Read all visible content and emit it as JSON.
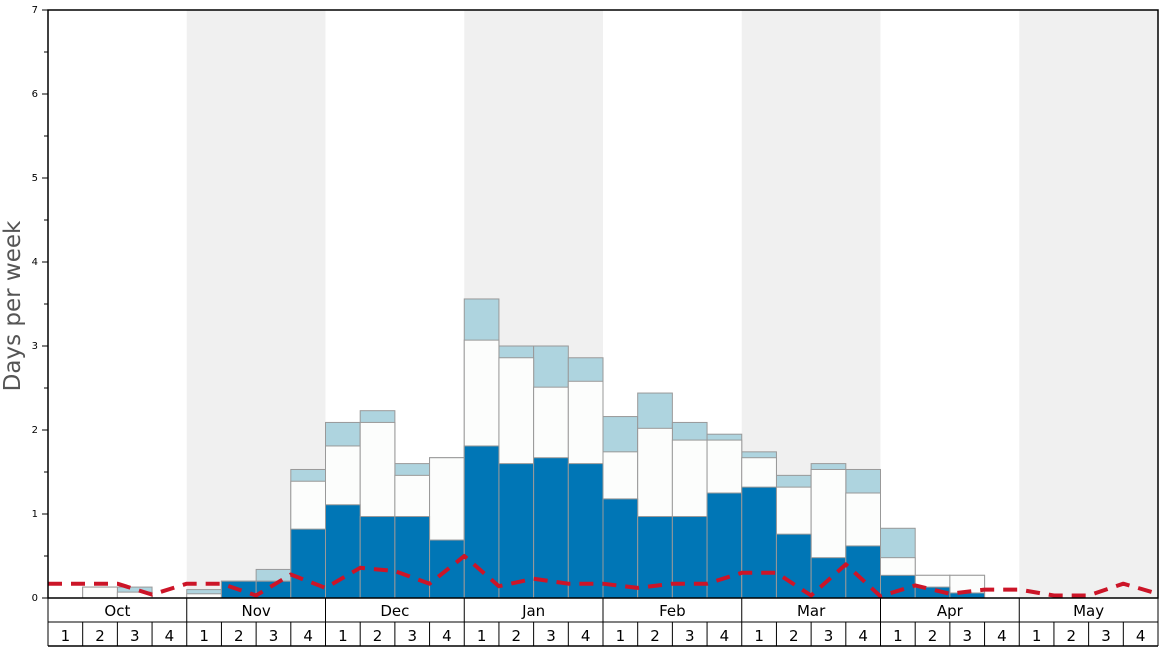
{
  "chart_data": {
    "type": "bar",
    "ylabel": "Days per week",
    "ylim": [
      0,
      7
    ],
    "yticks": [
      "0",
      "1",
      "2",
      "3",
      "4",
      "5",
      "6",
      "7"
    ],
    "months": [
      "Oct",
      "Nov",
      "Dec",
      "Jan",
      "Feb",
      "Mar",
      "Apr",
      "May"
    ],
    "weeks": [
      "1",
      "2",
      "3",
      "4"
    ],
    "shaded_months": [
      "Nov",
      "Jan",
      "Mar",
      "May"
    ],
    "colors": {
      "dark": "#0076b6",
      "middle": "#fcfdfc",
      "light": "#aed4df",
      "dashed_line": "#cc1528",
      "shade": "#f0f0f0",
      "bar_stroke": "#999999"
    },
    "series": [
      {
        "values": [
          0,
          0,
          0,
          0,
          0,
          0.2,
          0.2,
          0.82,
          1.11,
          0.97,
          0.97,
          0.69,
          1.81,
          1.6,
          1.67,
          1.6,
          1.18,
          0.97,
          0.97,
          1.25,
          1.32,
          0.76,
          0.48,
          0.62,
          0.27,
          0.13,
          0.06,
          0,
          0,
          0,
          0,
          0
        ]
      },
      {
        "values": [
          0,
          0.13,
          0.07,
          0,
          0.05,
          0.2,
          0.2,
          1.39,
          1.81,
          2.09,
          1.46,
          1.67,
          3.07,
          2.86,
          2.51,
          2.58,
          1.74,
          2.02,
          1.88,
          1.88,
          1.67,
          1.32,
          1.53,
          1.25,
          0.48,
          0.27,
          0.27,
          0,
          0,
          0,
          0,
          0
        ]
      },
      {
        "values": [
          0,
          0.13,
          0.13,
          0,
          0.1,
          0.2,
          0.34,
          1.53,
          2.09,
          2.23,
          1.6,
          1.67,
          3.56,
          3.0,
          3.0,
          2.86,
          2.16,
          2.44,
          2.09,
          1.95,
          1.74,
          1.46,
          1.6,
          1.53,
          0.83,
          0.27,
          0.27,
          0,
          0,
          0,
          0,
          0
        ]
      },
      {
        "values": [
          0.17,
          0.17,
          0.17,
          0.04,
          0.17,
          0.17,
          0.03,
          0.28,
          0.12,
          0.36,
          0.32,
          0.17,
          0.5,
          0.14,
          0.23,
          0.17,
          0.17,
          0.12,
          0.17,
          0.17,
          0.3,
          0.3,
          0.03,
          0.4,
          0.02,
          0.15,
          0.05,
          0.1,
          0.1,
          0.03,
          0.03,
          0.17,
          0.05
        ]
      }
    ]
  }
}
